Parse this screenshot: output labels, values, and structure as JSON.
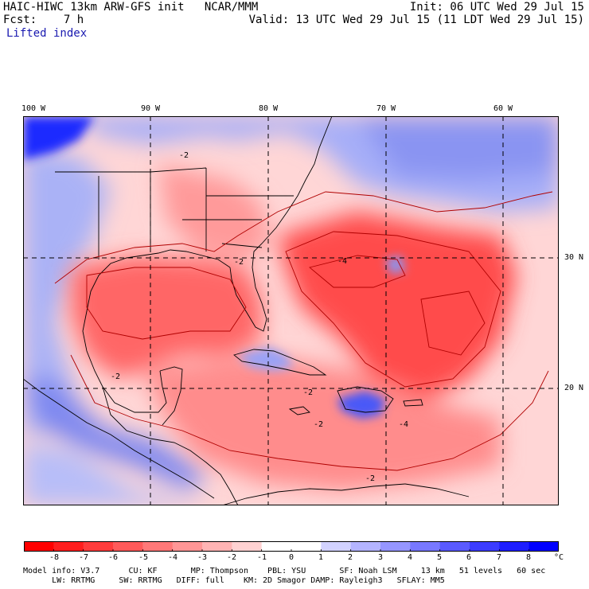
{
  "header": {
    "title_left": "HAIC-HIWC 13km ARW-GFS init   NCAR/MMM",
    "init": "Init: 06 UTC Wed 29 Jul 15",
    "fcst": "Fcst:    7 h",
    "valid": "Valid: 13 UTC Wed 29 Jul 15 (11 LDT Wed 29 Jul 15)",
    "field": "Lifted index"
  },
  "map": {
    "lon_labels": [
      "100 W",
      "90 W",
      "80 W",
      "70 W",
      "60 W"
    ],
    "lon_values": [
      -100,
      -90,
      -80,
      -70,
      -60
    ],
    "lat_labels": [
      "30 N",
      "20 N"
    ],
    "lat_values": [
      30,
      20
    ],
    "contour_labels": [
      "-2",
      "-2",
      "-2",
      "-4",
      "-2",
      "-4",
      "-2",
      "-2"
    ],
    "colors": {
      "frame": "#000000",
      "grid": "#000000",
      "border": "#000000"
    }
  },
  "colorbar": {
    "labels": [
      "-8",
      "-7",
      "-6",
      "-5",
      "-4",
      "-3",
      "-2",
      "-1",
      "0",
      "1",
      "2",
      "3",
      "4",
      "5",
      "6",
      "7",
      "8"
    ],
    "unit": "°C",
    "colors": [
      "#ff0000",
      "#ff1e1e",
      "#ff3c3c",
      "#ff5a5a",
      "#ff7878",
      "#ff9696",
      "#ffb4b4",
      "#ffd2d2",
      "#ffffff",
      "#ffffff",
      "#d2d2ff",
      "#b4b4ff",
      "#9696ff",
      "#7878ff",
      "#5a5aff",
      "#3c3cff",
      "#1e1eff",
      "#0000ff"
    ]
  },
  "footer": {
    "line1": "Model info: V3.7      CU: KF       MP: Thompson    PBL: YSU       SF: Noah LSM     13 km   51 levels   60 sec",
    "line2": "      LW: RRTMG     SW: RRTMG   DIFF: full    KM: 2D Smagor DAMP: Rayleigh3   SFLAY: MM5"
  }
}
